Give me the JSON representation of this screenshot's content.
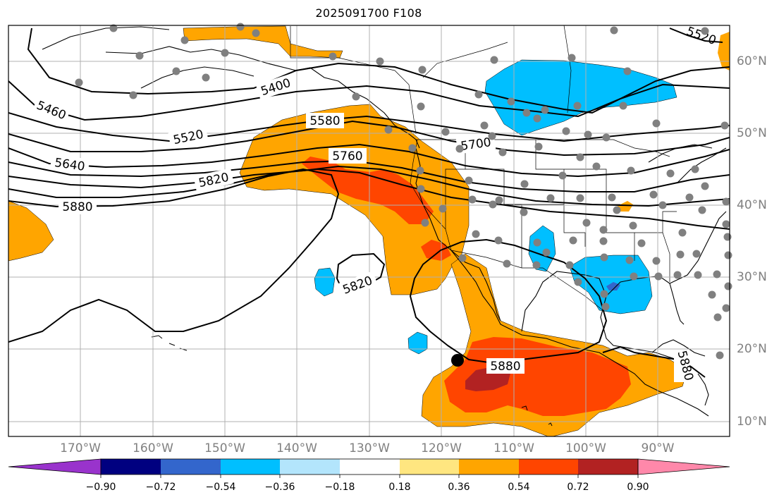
{
  "title": "2025091700 F108",
  "lat_labels": [
    "60°N",
    "50°N",
    "40°N",
    "30°N",
    "20°N",
    "10°N"
  ],
  "lon_labels": [
    "170°W",
    "160°W",
    "150°W",
    "140°W",
    "130°W",
    "120°W",
    "110°W",
    "100°W",
    "90°W"
  ],
  "contour_labels": [
    "5400",
    "5460",
    "5520",
    "5580",
    "5640",
    "5700",
    "5760",
    "5820",
    "5880",
    "5820",
    "5880",
    "5880",
    "5520"
  ],
  "colorbar": {
    "colors": [
      "#9933cc",
      "#000080",
      "#3366cc",
      "#00bfff",
      "#b3e5fc",
      "#ffffff",
      "#ffe680",
      "#ffa500",
      "#ff4500",
      "#b22222",
      "#ff88aa"
    ],
    "tick_labels": [
      "−0.90",
      "−0.72",
      "−0.54",
      "−0.36",
      "−0.18",
      "0.18",
      "0.36",
      "0.54",
      "0.72",
      "0.90"
    ]
  },
  "colors": {
    "orange": "#ffa500",
    "red_orange": "#ff4500",
    "dark_red": "#b22222",
    "light_blue": "#00bfff",
    "blue": "#3366cc",
    "station_dot": "#808080",
    "grid": "#b0b0b0"
  }
}
